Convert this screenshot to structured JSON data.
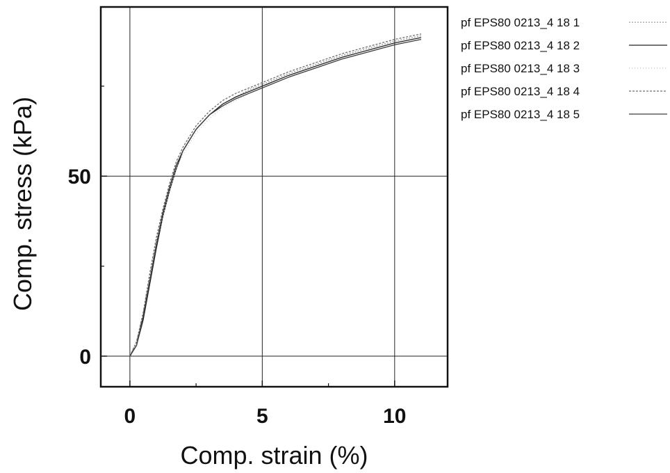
{
  "chart_data": {
    "type": "line",
    "xlabel": "Comp. strain (%)",
    "ylabel": "Comp. stress (kPa)",
    "xlim": [
      -1.1,
      12.0
    ],
    "ylim": [
      -8.5,
      97
    ],
    "xticks": [
      0,
      5,
      10
    ],
    "xtick_labels": [
      "0",
      "5",
      "10"
    ],
    "yticks": [
      0,
      50
    ],
    "ytick_labels": [
      "0",
      "50"
    ],
    "grid": true,
    "legend_position": "right",
    "series": [
      {
        "name": "pf EPS80 0213_4 18 1",
        "color": "#9a9a9a",
        "x": [
          0,
          0.25,
          0.5,
          0.75,
          1.0,
          1.25,
          1.5,
          1.75,
          2.0,
          2.5,
          3.0,
          3.5,
          4.0,
          4.5,
          5.0,
          6.0,
          7.0,
          8.0,
          9.0,
          10.0,
          11.0
        ],
        "y": [
          0,
          4,
          12,
          22,
          32,
          40,
          47,
          53,
          57,
          63,
          67,
          70,
          72,
          74,
          75.5,
          78.5,
          81,
          83.5,
          85.5,
          87.5,
          89
        ]
      },
      {
        "name": "pf EPS80 0213_4 18 2",
        "color": "#222222",
        "x": [
          0,
          0.25,
          0.5,
          0.75,
          1.0,
          1.25,
          1.5,
          1.75,
          2.0,
          2.5,
          3.0,
          3.5,
          4.0,
          4.5,
          5.0,
          6.0,
          7.0,
          8.0,
          9.0,
          10.0,
          11.0
        ],
        "y": [
          0,
          3,
          10,
          20,
          30,
          39,
          46,
          52,
          57,
          63,
          67,
          70,
          72,
          73.5,
          75,
          78,
          80.5,
          83,
          85,
          87,
          88.5
        ]
      },
      {
        "name": "pf EPS80 0213_4 18 3",
        "color": "#c4c4c4",
        "x": [
          0,
          0.25,
          0.5,
          0.75,
          1.0,
          1.25,
          1.5,
          1.75,
          2.0,
          2.5,
          3.0,
          3.5,
          4.0,
          4.5,
          5.0,
          6.0,
          7.0,
          8.0,
          9.0,
          10.0,
          11.0
        ],
        "y": [
          0,
          3,
          11,
          21,
          31,
          39,
          46,
          52,
          56,
          62,
          66,
          69,
          71,
          73,
          74.5,
          77.5,
          80,
          82.5,
          84.5,
          86.5,
          88
        ]
      },
      {
        "name": "pf EPS80 0213_4 18 4",
        "color": "#6e6e6e",
        "x": [
          0,
          0.25,
          0.5,
          0.75,
          1.0,
          1.25,
          1.5,
          1.75,
          2.0,
          2.5,
          3.0,
          3.5,
          4.0,
          4.5,
          5.0,
          6.0,
          7.0,
          8.0,
          9.0,
          10.0,
          11.0
        ],
        "y": [
          0,
          4,
          12,
          23,
          33,
          41,
          48,
          54,
          58,
          64,
          68,
          71,
          73,
          74.5,
          76,
          79,
          81.5,
          84,
          86,
          88,
          89.5
        ]
      },
      {
        "name": "pf EPS80 0213_4 18 5",
        "color": "#3c3c3c",
        "x": [
          0,
          0.25,
          0.5,
          0.75,
          1.0,
          1.25,
          1.5,
          1.75,
          2.0,
          2.5,
          3.0,
          3.5,
          4.0,
          4.5,
          5.0,
          6.0,
          7.0,
          8.0,
          9.0,
          10.0,
          11.0
        ],
        "y": [
          0,
          3,
          11,
          21,
          31,
          40,
          47,
          53,
          57,
          63,
          67,
          69.5,
          71.5,
          73,
          74.5,
          77.5,
          80,
          82.5,
          84.5,
          86.5,
          88
        ]
      }
    ]
  }
}
